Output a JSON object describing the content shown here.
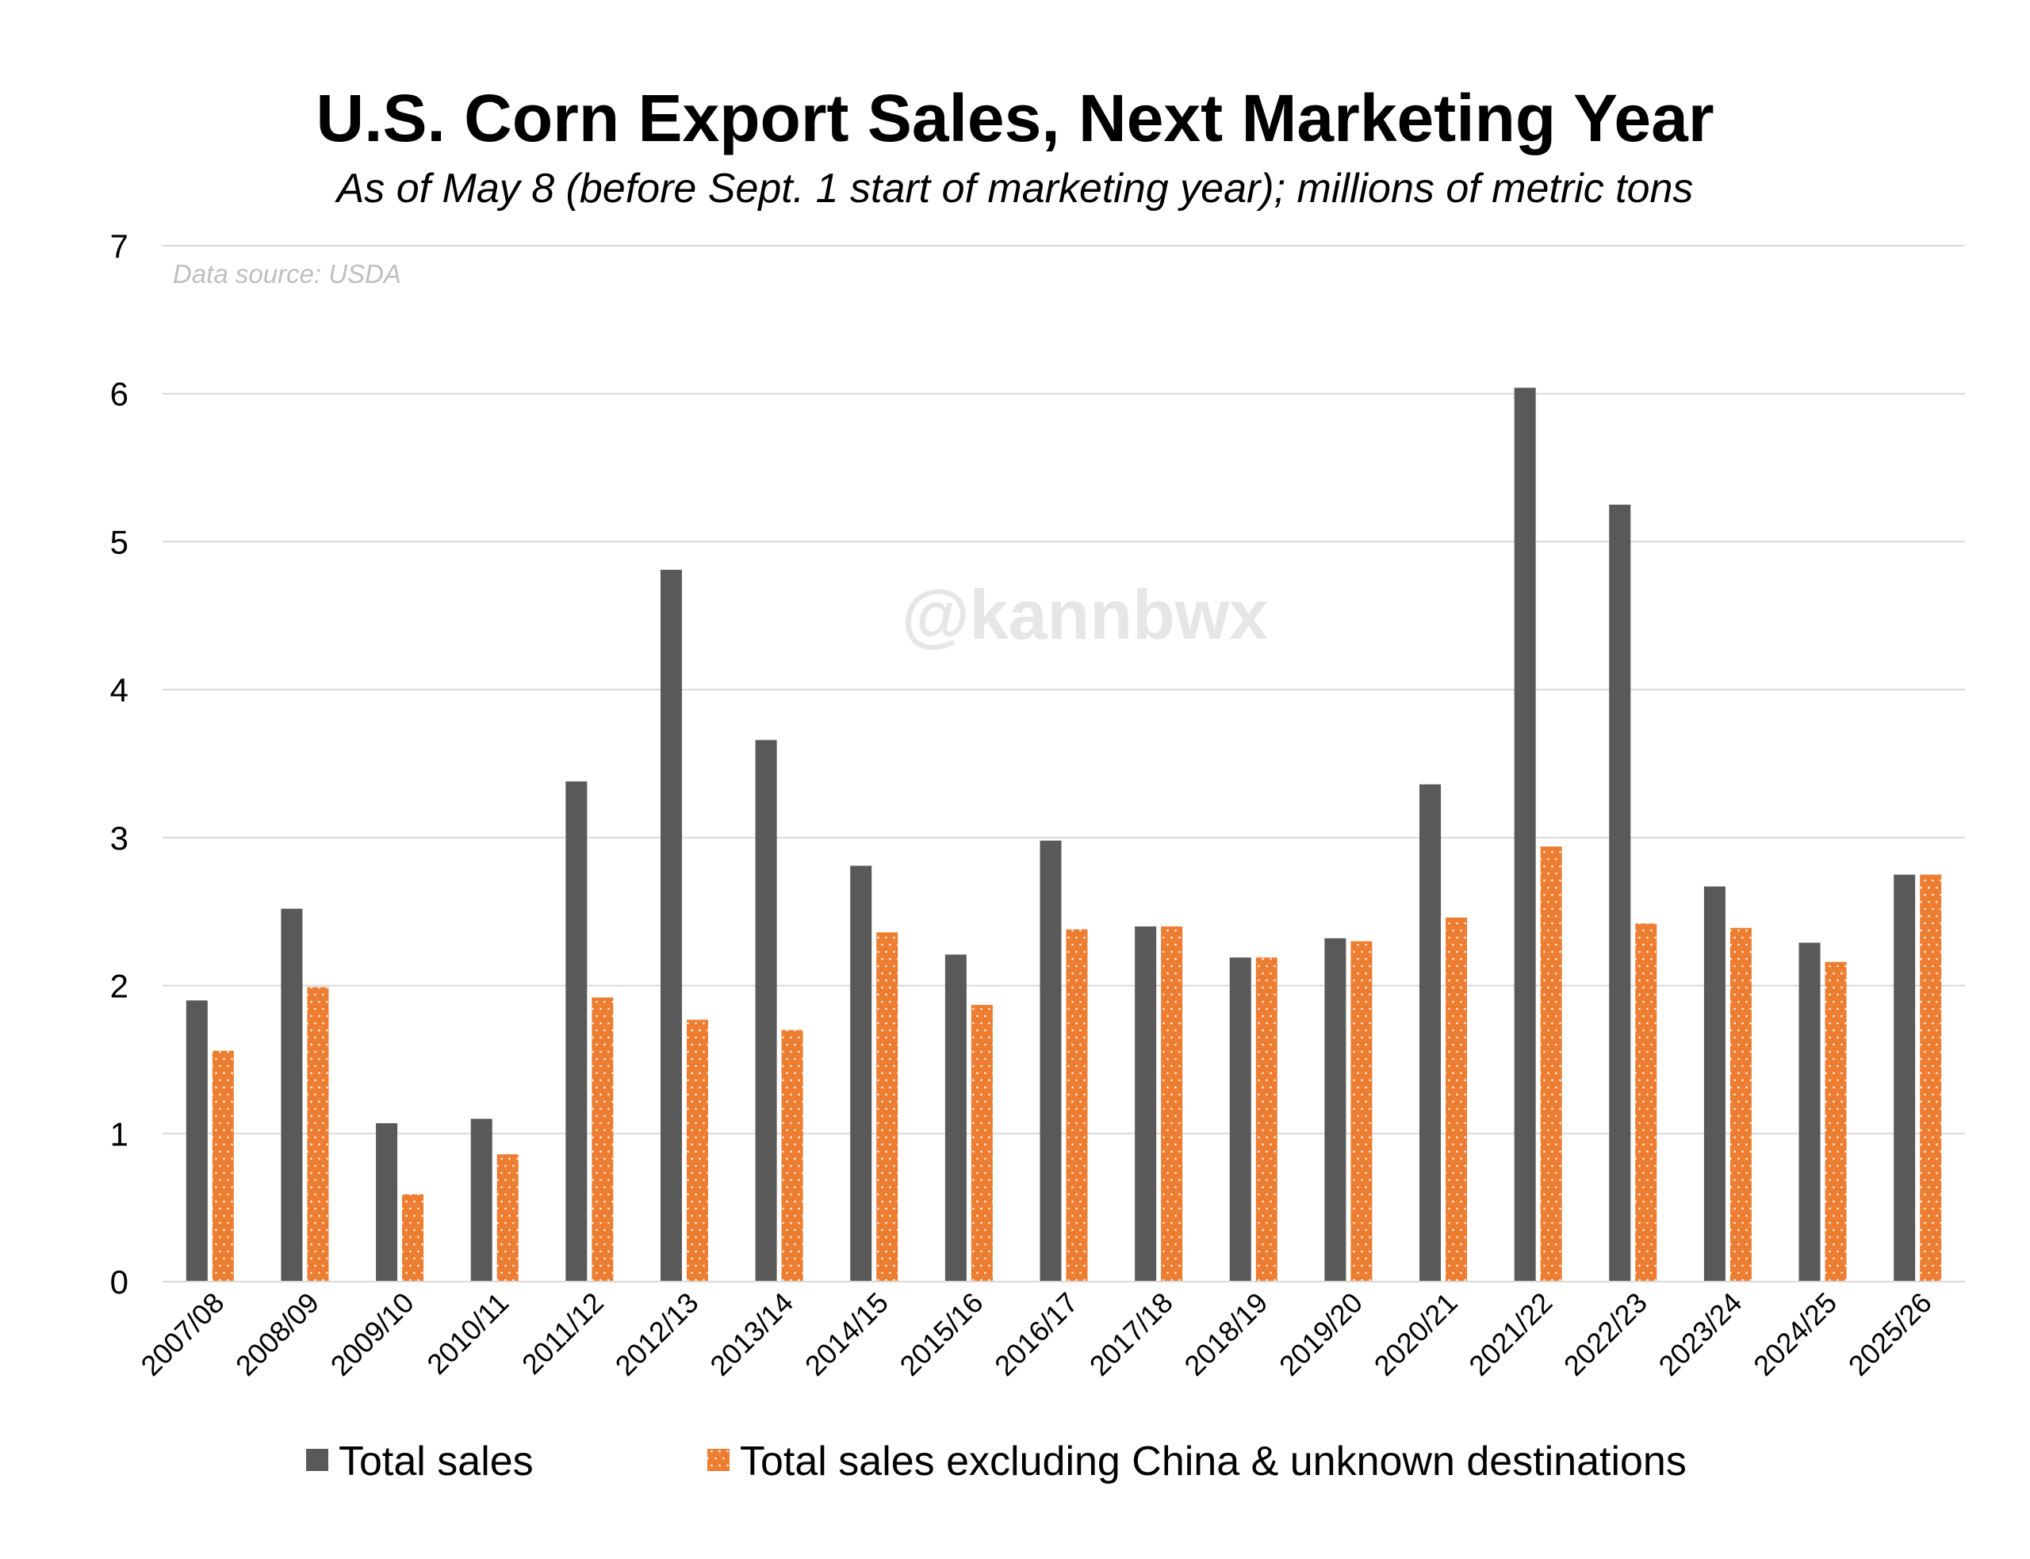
{
  "chart_data": {
    "type": "bar",
    "title": "U.S. Corn Export Sales, Next Marketing Year",
    "subtitle": "As of May 8 (before Sept. 1 start of marketing year); millions of metric tons",
    "source_note": "Data source: USDA",
    "watermark": "@kannbwx",
    "xlabel": "",
    "ylabel": "",
    "ylim": [
      0,
      7
    ],
    "yticks": [
      0,
      1,
      2,
      3,
      4,
      5,
      6,
      7
    ],
    "grid": true,
    "legend_position": "bottom",
    "categories": [
      "2007/08",
      "2008/09",
      "2009/10",
      "2010/11",
      "2011/12",
      "2012/13",
      "2013/14",
      "2014/15",
      "2015/16",
      "2016/17",
      "2017/18",
      "2018/19",
      "2019/20",
      "2020/21",
      "2021/22",
      "2022/23",
      "2023/24",
      "2024/25",
      "2025/26"
    ],
    "series": [
      {
        "name": "Total sales",
        "color": "#595959",
        "pattern": "solid",
        "values": [
          1.9,
          2.52,
          1.07,
          1.1,
          3.38,
          4.81,
          3.66,
          2.81,
          2.21,
          2.98,
          2.4,
          2.19,
          2.32,
          3.36,
          6.04,
          5.25,
          2.67,
          2.29,
          2.75
        ]
      },
      {
        "name": "Total sales excluding China & unknown destinations",
        "color": "#ed7d31",
        "pattern": "dotted",
        "values": [
          1.56,
          1.99,
          0.59,
          0.86,
          1.92,
          1.77,
          1.7,
          2.36,
          1.87,
          2.38,
          2.4,
          2.19,
          2.3,
          2.46,
          2.94,
          2.42,
          2.39,
          2.16,
          2.75
        ]
      }
    ]
  }
}
